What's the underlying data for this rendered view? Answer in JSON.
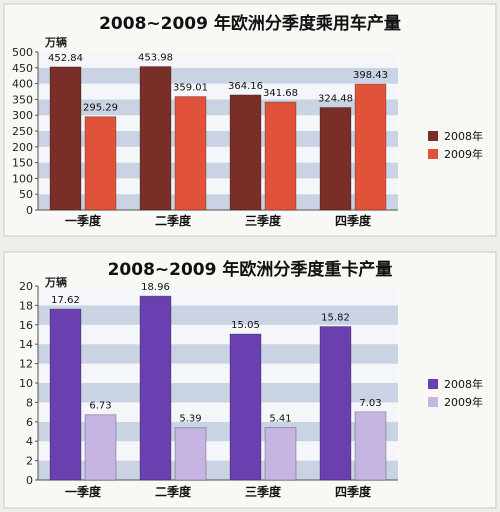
{
  "chart_data": [
    {
      "type": "bar",
      "title": "2008~2009 年欧洲分季度乘用车产量",
      "ylabel": "万辆",
      "categories": [
        "一季度",
        "二季度",
        "三季度",
        "四季度"
      ],
      "series": [
        {
          "name": "2008年",
          "values": [
            452.84,
            453.98,
            364.16,
            324.48
          ],
          "value_labels": [
            "452.84",
            "453.98",
            "364.16",
            "324.48"
          ],
          "color": "#7a2e28"
        },
        {
          "name": "2009年",
          "values": [
            295.29,
            359.01,
            341.68,
            398.43
          ],
          "value_labels": [
            "295.29",
            "359.01",
            "341.68",
            "398.43"
          ],
          "color": "#e0523a"
        }
      ],
      "ylim": [
        0,
        500
      ],
      "yticks": [
        "0",
        "50",
        "100",
        "150",
        "200",
        "250",
        "300",
        "350",
        "400",
        "450",
        "500"
      ],
      "legend_position": "right",
      "grid": "horizontal bands"
    },
    {
      "type": "bar",
      "title": "2008~2009 年欧洲分季度重卡产量",
      "ylabel": "万辆",
      "categories": [
        "一季度",
        "二季度",
        "三季度",
        "四季度"
      ],
      "series": [
        {
          "name": "2008年",
          "values": [
            17.62,
            18.96,
            15.05,
            15.82
          ],
          "value_labels": [
            "17.62",
            "18.96",
            "15.05",
            "15.82"
          ],
          "color": "#6a3fb0"
        },
        {
          "name": "2009年",
          "values": [
            6.73,
            5.39,
            5.41,
            7.03
          ],
          "value_labels": [
            "6.73",
            "5.39",
            "5.41",
            "7.03"
          ],
          "color": "#c6b4e2"
        }
      ],
      "ylim": [
        0,
        20
      ],
      "yticks": [
        "0",
        "2",
        "4",
        "6",
        "8",
        "10",
        "12",
        "14",
        "16",
        "18",
        "20"
      ],
      "legend_position": "right",
      "grid": "horizontal bands"
    }
  ]
}
